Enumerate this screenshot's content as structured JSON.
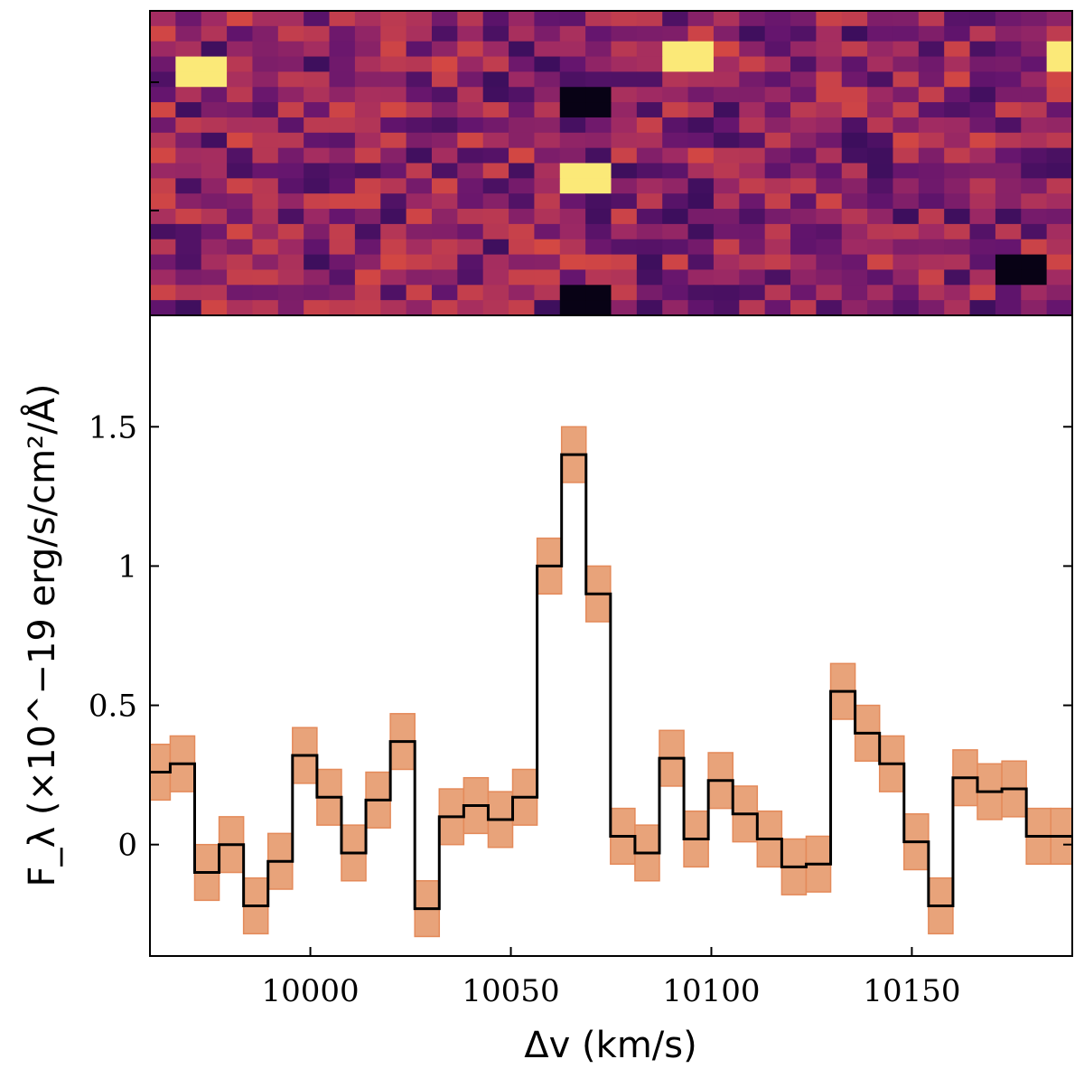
{
  "chart_data": [
    {
      "type": "heatmap",
      "panel": "top",
      "cols": 36,
      "rows": 20,
      "colormap": "inferno",
      "bright_features": [
        {
          "col": 16,
          "row": 10,
          "level": "bright"
        },
        {
          "col": 35,
          "row": 2,
          "level": "bright"
        },
        {
          "col": 20,
          "row": 2,
          "level": "bright"
        },
        {
          "col": 1,
          "row": 3,
          "level": "bright"
        }
      ],
      "dark_features": [
        {
          "col": 16,
          "row": 5,
          "level": "dark"
        },
        {
          "col": 16,
          "row": 18,
          "level": "dark"
        },
        {
          "col": 33,
          "row": 16,
          "level": "dark"
        }
      ]
    },
    {
      "type": "line",
      "panel": "bottom",
      "style": "step",
      "xlabel": "Δv (km/s)",
      "ylabel": "F_λ (×10^−19 erg/s/cm²/Å)",
      "xlim": [
        9960,
        10190
      ],
      "ylim": [
        -0.4,
        1.9
      ],
      "xticks": [
        10000,
        10050,
        10100,
        10150
      ],
      "xtick_labels": [
        "10000",
        "10050",
        "10100",
        "10150"
      ],
      "yticks": [
        0,
        0.5,
        1,
        1.5
      ],
      "ytick_labels": [
        "0",
        "0.5",
        "1",
        "1.5"
      ],
      "bin_width": 6.1,
      "x": [
        9962,
        9968.1,
        9974.2,
        9980.3,
        9986.4,
        9992.5,
        9998.6,
        10004.7,
        10010.8,
        10016.9,
        10023,
        10029.1,
        10035.2,
        10041.3,
        10047.4,
        10053.5,
        10059.6,
        10065.7,
        10071.8,
        10077.9,
        10084,
        10090.1,
        10096.2,
        10102.3,
        10108.4,
        10114.5,
        10120.6,
        10126.7,
        10132.8,
        10138.9,
        10145,
        10151.1,
        10157.2,
        10163.3,
        10169.4,
        10175.5,
        10181.6,
        10187.7
      ],
      "series": [
        {
          "values": [
            0.26,
            0.29,
            -0.1,
            0.0,
            -0.22,
            -0.06,
            0.32,
            0.17,
            -0.03,
            0.16,
            0.37,
            -0.23,
            0.1,
            0.14,
            0.09,
            0.17,
            1.0,
            1.4,
            0.9,
            0.03,
            -0.03,
            0.31,
            0.02,
            0.23,
            0.11,
            0.02,
            -0.08,
            -0.07,
            0.55,
            0.4,
            0.29,
            0.01,
            -0.22,
            0.24,
            0.19,
            0.2,
            0.03,
            0.03
          ],
          "uncertainty": 0.1,
          "color": "#000000",
          "band_color": "#e8a37a",
          "band_edge_color": "#e48a5a"
        }
      ]
    }
  ]
}
